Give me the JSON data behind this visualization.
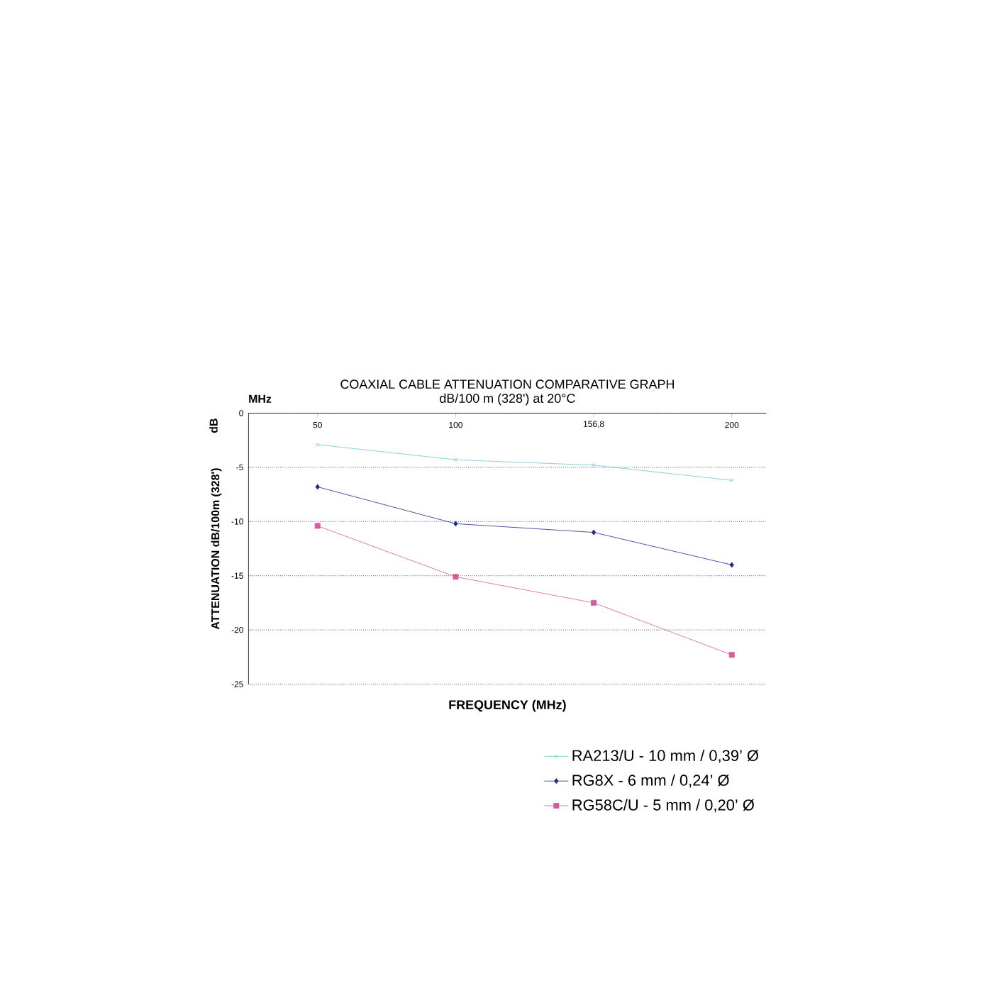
{
  "chart_data": {
    "type": "line",
    "title": "COAXIAL CABLE ATTENUATION COMPARATIVE GRAPH",
    "subtitle": "dB/100 m (328') at 20°C",
    "xlabel": "FREQUENCY (MHz)",
    "ylabel": "ATTENUATION dB/100m (328')",
    "annotations": [
      "MHz",
      "dB"
    ],
    "categories": [
      "50",
      "100",
      "156,8",
      "200"
    ],
    "series": [
      {
        "name": "RA213/U - 10 mm / 0,39’ Ø",
        "color": "#6cc5d6",
        "marker": "cross",
        "values": [
          -2.9,
          -4.3,
          -4.8,
          -6.2
        ]
      },
      {
        "name": "RG8X - 6 mm / 0,24’ Ø",
        "color": "#1f2a8a",
        "marker": "diamond",
        "values": [
          -6.8,
          -10.2,
          -11.0,
          -14.0
        ]
      },
      {
        "name": "RG58C/U - 5 mm / 0,20’ Ø",
        "color": "#d45c9c",
        "marker": "square",
        "values": [
          -10.4,
          -15.1,
          -17.5,
          -22.3
        ]
      }
    ],
    "ylim": [
      -25,
      0
    ],
    "yticks": [
      -25,
      -20,
      -15,
      -10,
      -5,
      0
    ],
    "grid": "y",
    "legend": "bottom right",
    "line_style": "solid"
  }
}
